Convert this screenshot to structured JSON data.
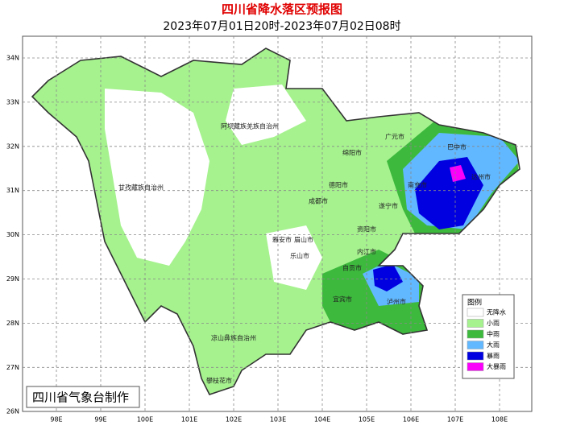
{
  "header": {
    "title": "四川省降水落区预报图",
    "subtitle": "2023年07月01日20时-2023年07月02日08时"
  },
  "map": {
    "lat_labels": [
      "34N",
      "33N",
      "32N",
      "31N",
      "30N",
      "29N",
      "28N",
      "27N",
      "26N"
    ],
    "lon_labels": [
      "98E",
      "99E",
      "100E",
      "101E",
      "102E",
      "103E",
      "104E",
      "105E",
      "106E",
      "107E",
      "108E"
    ],
    "cities": [
      "阿坝藏族羌族自治州",
      "甘孜藏族自治州",
      "广元市",
      "巴中市",
      "绵阳市",
      "达州市",
      "德阳市",
      "南充市",
      "成都市",
      "遂宁市",
      "雅安市",
      "眉山市",
      "资阳市",
      "内江市",
      "乐山市",
      "自贡市",
      "宜宾市",
      "泸州市",
      "凉山彝族自治州",
      "攀枝花市"
    ]
  },
  "legend": {
    "title": "图例",
    "items": [
      {
        "label": "无降水",
        "color": "#ffffff"
      },
      {
        "label": "小雨",
        "color": "#a6f28f"
      },
      {
        "label": "中雨",
        "color": "#3dba3d"
      },
      {
        "label": "大雨",
        "color": "#61b8ff"
      },
      {
        "label": "暴雨",
        "color": "#0000e1"
      },
      {
        "label": "大暴雨",
        "color": "#fa00fa"
      }
    ]
  },
  "footer": {
    "credit": "四川省气象台制作"
  }
}
